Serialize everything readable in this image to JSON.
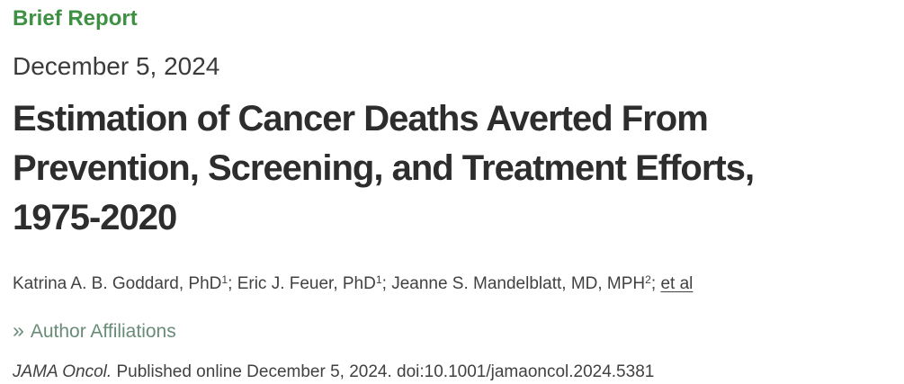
{
  "header": {
    "category": "Brief Report",
    "date": "December 5, 2024"
  },
  "title": {
    "lines": [
      "Estimation of Cancer Deaths Averted From",
      "Prevention, Screening, and Treatment Efforts,",
      "1975-2020"
    ]
  },
  "authors": {
    "list": [
      {
        "name": "Katrina A. B. Goddard, PhD",
        "sup": "1",
        "sep": "; "
      },
      {
        "name": "Eric J. Feuer, PhD",
        "sup": "1",
        "sep": "; "
      },
      {
        "name": "Jeanne S. Mandelblatt, MD, MPH",
        "sup": "2",
        "sep": "; "
      }
    ],
    "et_al": "et al"
  },
  "affiliations": {
    "icon": "»",
    "label": "Author Affiliations"
  },
  "citation": {
    "journal": "JAMA Oncol.",
    "rest": " Published online December 5, 2024. doi:10.1001/jamaoncol.2024.5381"
  },
  "colors": {
    "category_green": "#3E9142",
    "affiliations_teal": "#698C78",
    "title_dark": "#2D2D2D",
    "body_gray": "#414141"
  }
}
